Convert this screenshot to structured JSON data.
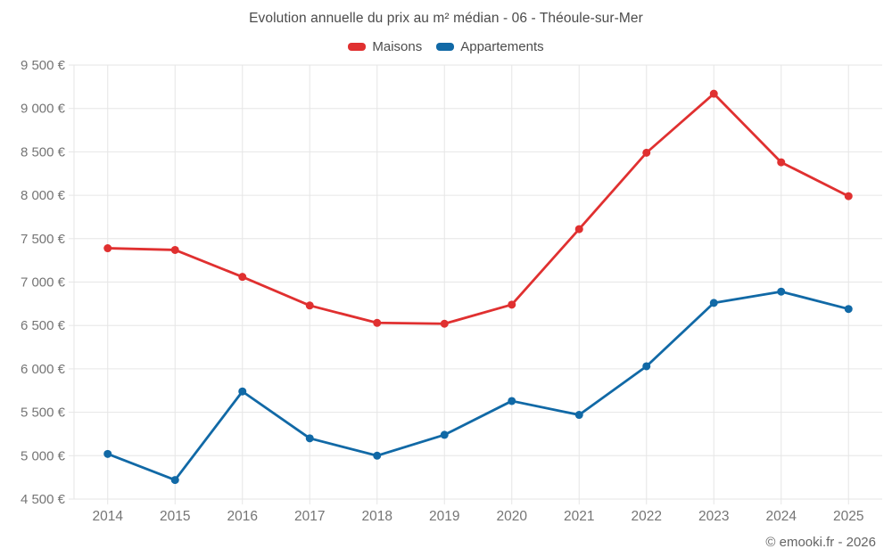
{
  "chart_data": {
    "type": "line",
    "title": "Evolution annuelle du prix au m² médian - 06 - Théoule-sur-Mer",
    "categories": [
      "2014",
      "2015",
      "2016",
      "2017",
      "2018",
      "2019",
      "2020",
      "2021",
      "2022",
      "2023",
      "2024",
      "2025"
    ],
    "series": [
      {
        "name": "Maisons",
        "color": "#e03030",
        "values": [
          7390,
          7370,
          7060,
          6730,
          6530,
          6520,
          6740,
          7610,
          8490,
          9170,
          8380,
          7990
        ]
      },
      {
        "name": "Appartements",
        "color": "#1169a6",
        "values": [
          5020,
          4720,
          5740,
          5200,
          5000,
          5240,
          5630,
          5470,
          6030,
          6760,
          6890,
          6690
        ]
      }
    ],
    "y_axis": {
      "min": 4500,
      "max": 9500,
      "tick_step": 500,
      "unit": "€",
      "tick_labels": [
        "4 500 €",
        "5 000 €",
        "5 500 €",
        "6 000 €",
        "6 500 €",
        "7 000 €",
        "7 500 €",
        "8 000 €",
        "8 500 €",
        "9 000 €",
        "9 500 €"
      ]
    },
    "grid": true,
    "legend_position": "top",
    "grid_color": "#e6e6e6",
    "axis_label_color": "#757575"
  },
  "footer": {
    "credit": "© emooki.fr - 2026"
  }
}
